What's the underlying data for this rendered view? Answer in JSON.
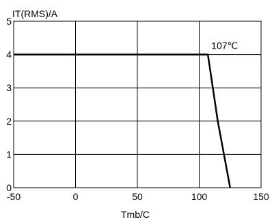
{
  "chart_data": {
    "type": "line",
    "title": "",
    "xlabel": "Tmb/C",
    "ylabel": "IT(RMS)/A",
    "xlim": [
      -50,
      150
    ],
    "ylim": [
      0,
      5
    ],
    "xticks": [
      -50,
      0,
      50,
      100,
      150
    ],
    "yticks": [
      0,
      1,
      2,
      3,
      4,
      5
    ],
    "grid": true,
    "legend": "none",
    "series": [
      {
        "x": [
          -50,
          107,
          115,
          125
        ],
        "y": [
          4,
          4,
          2,
          0
        ]
      }
    ],
    "annotations": [
      {
        "text": "107℃",
        "x": 107,
        "y": 4
      }
    ],
    "colors": {
      "line": "#000000",
      "grid": "#000000",
      "background": "#ffffff"
    }
  }
}
